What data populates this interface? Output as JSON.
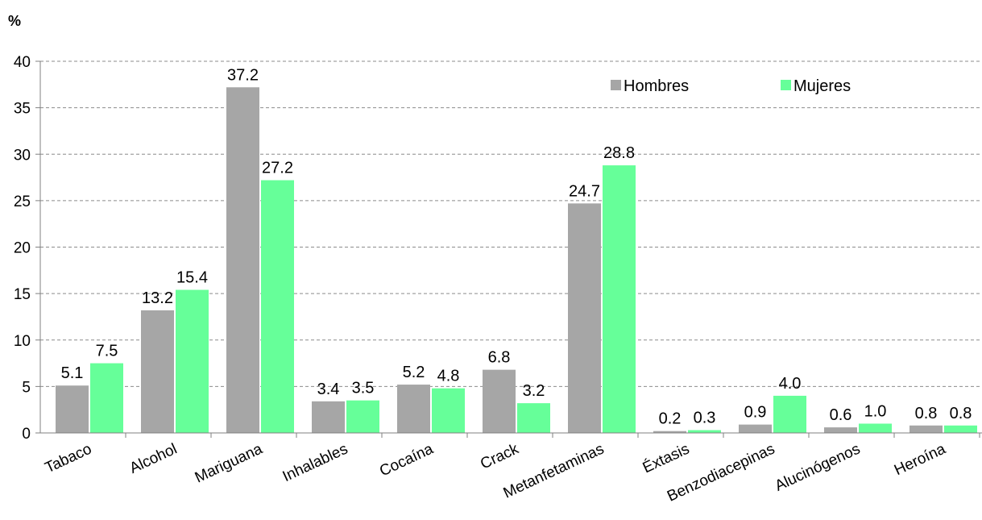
{
  "chart_data": {
    "type": "bar",
    "ylabel": "%",
    "ylim": [
      0,
      40
    ],
    "yticks": [
      "0",
      "5",
      "10",
      "15",
      "20",
      "25",
      "30",
      "35",
      "40"
    ],
    "grid": true,
    "legend_position": "top-right",
    "categories": [
      "Tabaco",
      "Alcohol",
      "Mariguana",
      "Inhalables",
      "Cocaína",
      "Crack",
      "Metanfetaminas",
      "Éxtasis",
      "Benzodiacepinas",
      "Alucinógenos",
      "Heroína"
    ],
    "series": [
      {
        "name": "Hombres",
        "color": "#a6a6a6",
        "values": [
          5.1,
          13.2,
          37.2,
          3.4,
          5.2,
          6.8,
          24.7,
          0.2,
          0.9,
          0.6,
          0.8
        ],
        "labels": [
          "5.1",
          "13.2",
          "37.2",
          "3.4",
          "5.2",
          "6.8",
          "24.7",
          "0.2",
          "0.9",
          "0.6",
          "0.8"
        ]
      },
      {
        "name": "Mujeres",
        "color": "#66ff99",
        "values": [
          7.5,
          15.4,
          27.2,
          3.5,
          4.8,
          3.2,
          28.8,
          0.3,
          4.0,
          1.0,
          0.8
        ],
        "labels": [
          "7.5",
          "15.4",
          "27.2",
          "3.5",
          "4.8",
          "3.2",
          "28.8",
          "0.3",
          "4.0",
          "1.0",
          "0.8"
        ]
      }
    ]
  }
}
